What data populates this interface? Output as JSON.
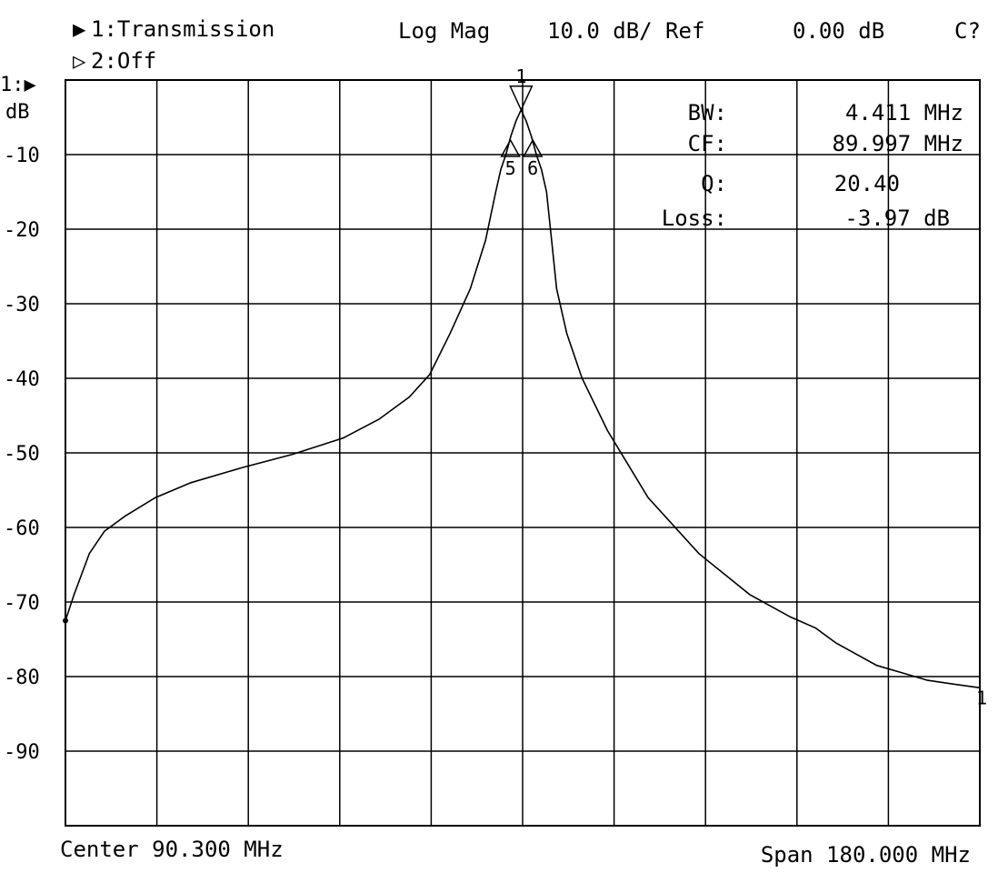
{
  "header": {
    "trace1_marker": "▶",
    "trace1_label": "1:Transmission",
    "trace2_marker": "▷",
    "trace2_label": "2:Off",
    "format": "Log Mag",
    "scale": "10.0 dB/ Ref",
    "ref_value": "0.00 dB",
    "cal_status": "C?",
    "ref_marker": "1:▶",
    "unit": "dB"
  },
  "readout": {
    "rows": [
      {
        "label": "BW:",
        "value": "4.411 MHz"
      },
      {
        "label": "CF:",
        "value": "89.997 MHz"
      },
      {
        "label": "Q:",
        "value": "20.40"
      },
      {
        "label": "Loss:",
        "value": "-3.97 dB"
      }
    ]
  },
  "footer": {
    "center": "Center 90.300 MHz",
    "span": "Span 180.000 MHz"
  },
  "chart_data": {
    "type": "line",
    "title": "",
    "xlabel": "",
    "ylabel": "dB",
    "xlim": [
      0.3,
      180.3
    ],
    "ylim": [
      -100,
      0
    ],
    "grid": true,
    "y_tick_labels": [
      "-10",
      "-20",
      "-30",
      "-40",
      "-50",
      "-60",
      "-70",
      "-80",
      "-90"
    ],
    "y_tick_values": [
      -10,
      -20,
      -30,
      -40,
      -50,
      -60,
      -70,
      -80,
      -90
    ],
    "markers": [
      {
        "label": "1",
        "x": 90.0,
        "y": -4.0
      },
      {
        "label": "5",
        "x": 87.9,
        "y": -10.0
      },
      {
        "label": "6",
        "x": 92.3,
        "y": -10.0
      }
    ],
    "end_marker": "1",
    "series": [
      {
        "name": "Transmission",
        "x": [
          0.3,
          2,
          5,
          8,
          12,
          18,
          25,
          35,
          45,
          55,
          62,
          68,
          72,
          76,
          80,
          83,
          85,
          86,
          87,
          88,
          89,
          90,
          91,
          92,
          93,
          94,
          95,
          96,
          97,
          99,
          102,
          107,
          115,
          125,
          135,
          143,
          148,
          152,
          156,
          160,
          165,
          170,
          175,
          180.3
        ],
        "y": [
          -72.5,
          -69,
          -63.5,
          -60.5,
          -58.5,
          -56,
          -54,
          -52,
          -50.2,
          -48,
          -45.5,
          -42.5,
          -39.5,
          -34,
          -28,
          -21.5,
          -15,
          -12,
          -10,
          -7.5,
          -5.5,
          -4,
          -5.5,
          -7.5,
          -10,
          -12,
          -15,
          -21.5,
          -28,
          -34,
          -40,
          -47,
          -56,
          -63.5,
          -69,
          -72,
          -73.5,
          -75.5,
          -77,
          -78.5,
          -79.5,
          -80.5,
          -81,
          -81.5
        ]
      }
    ]
  }
}
